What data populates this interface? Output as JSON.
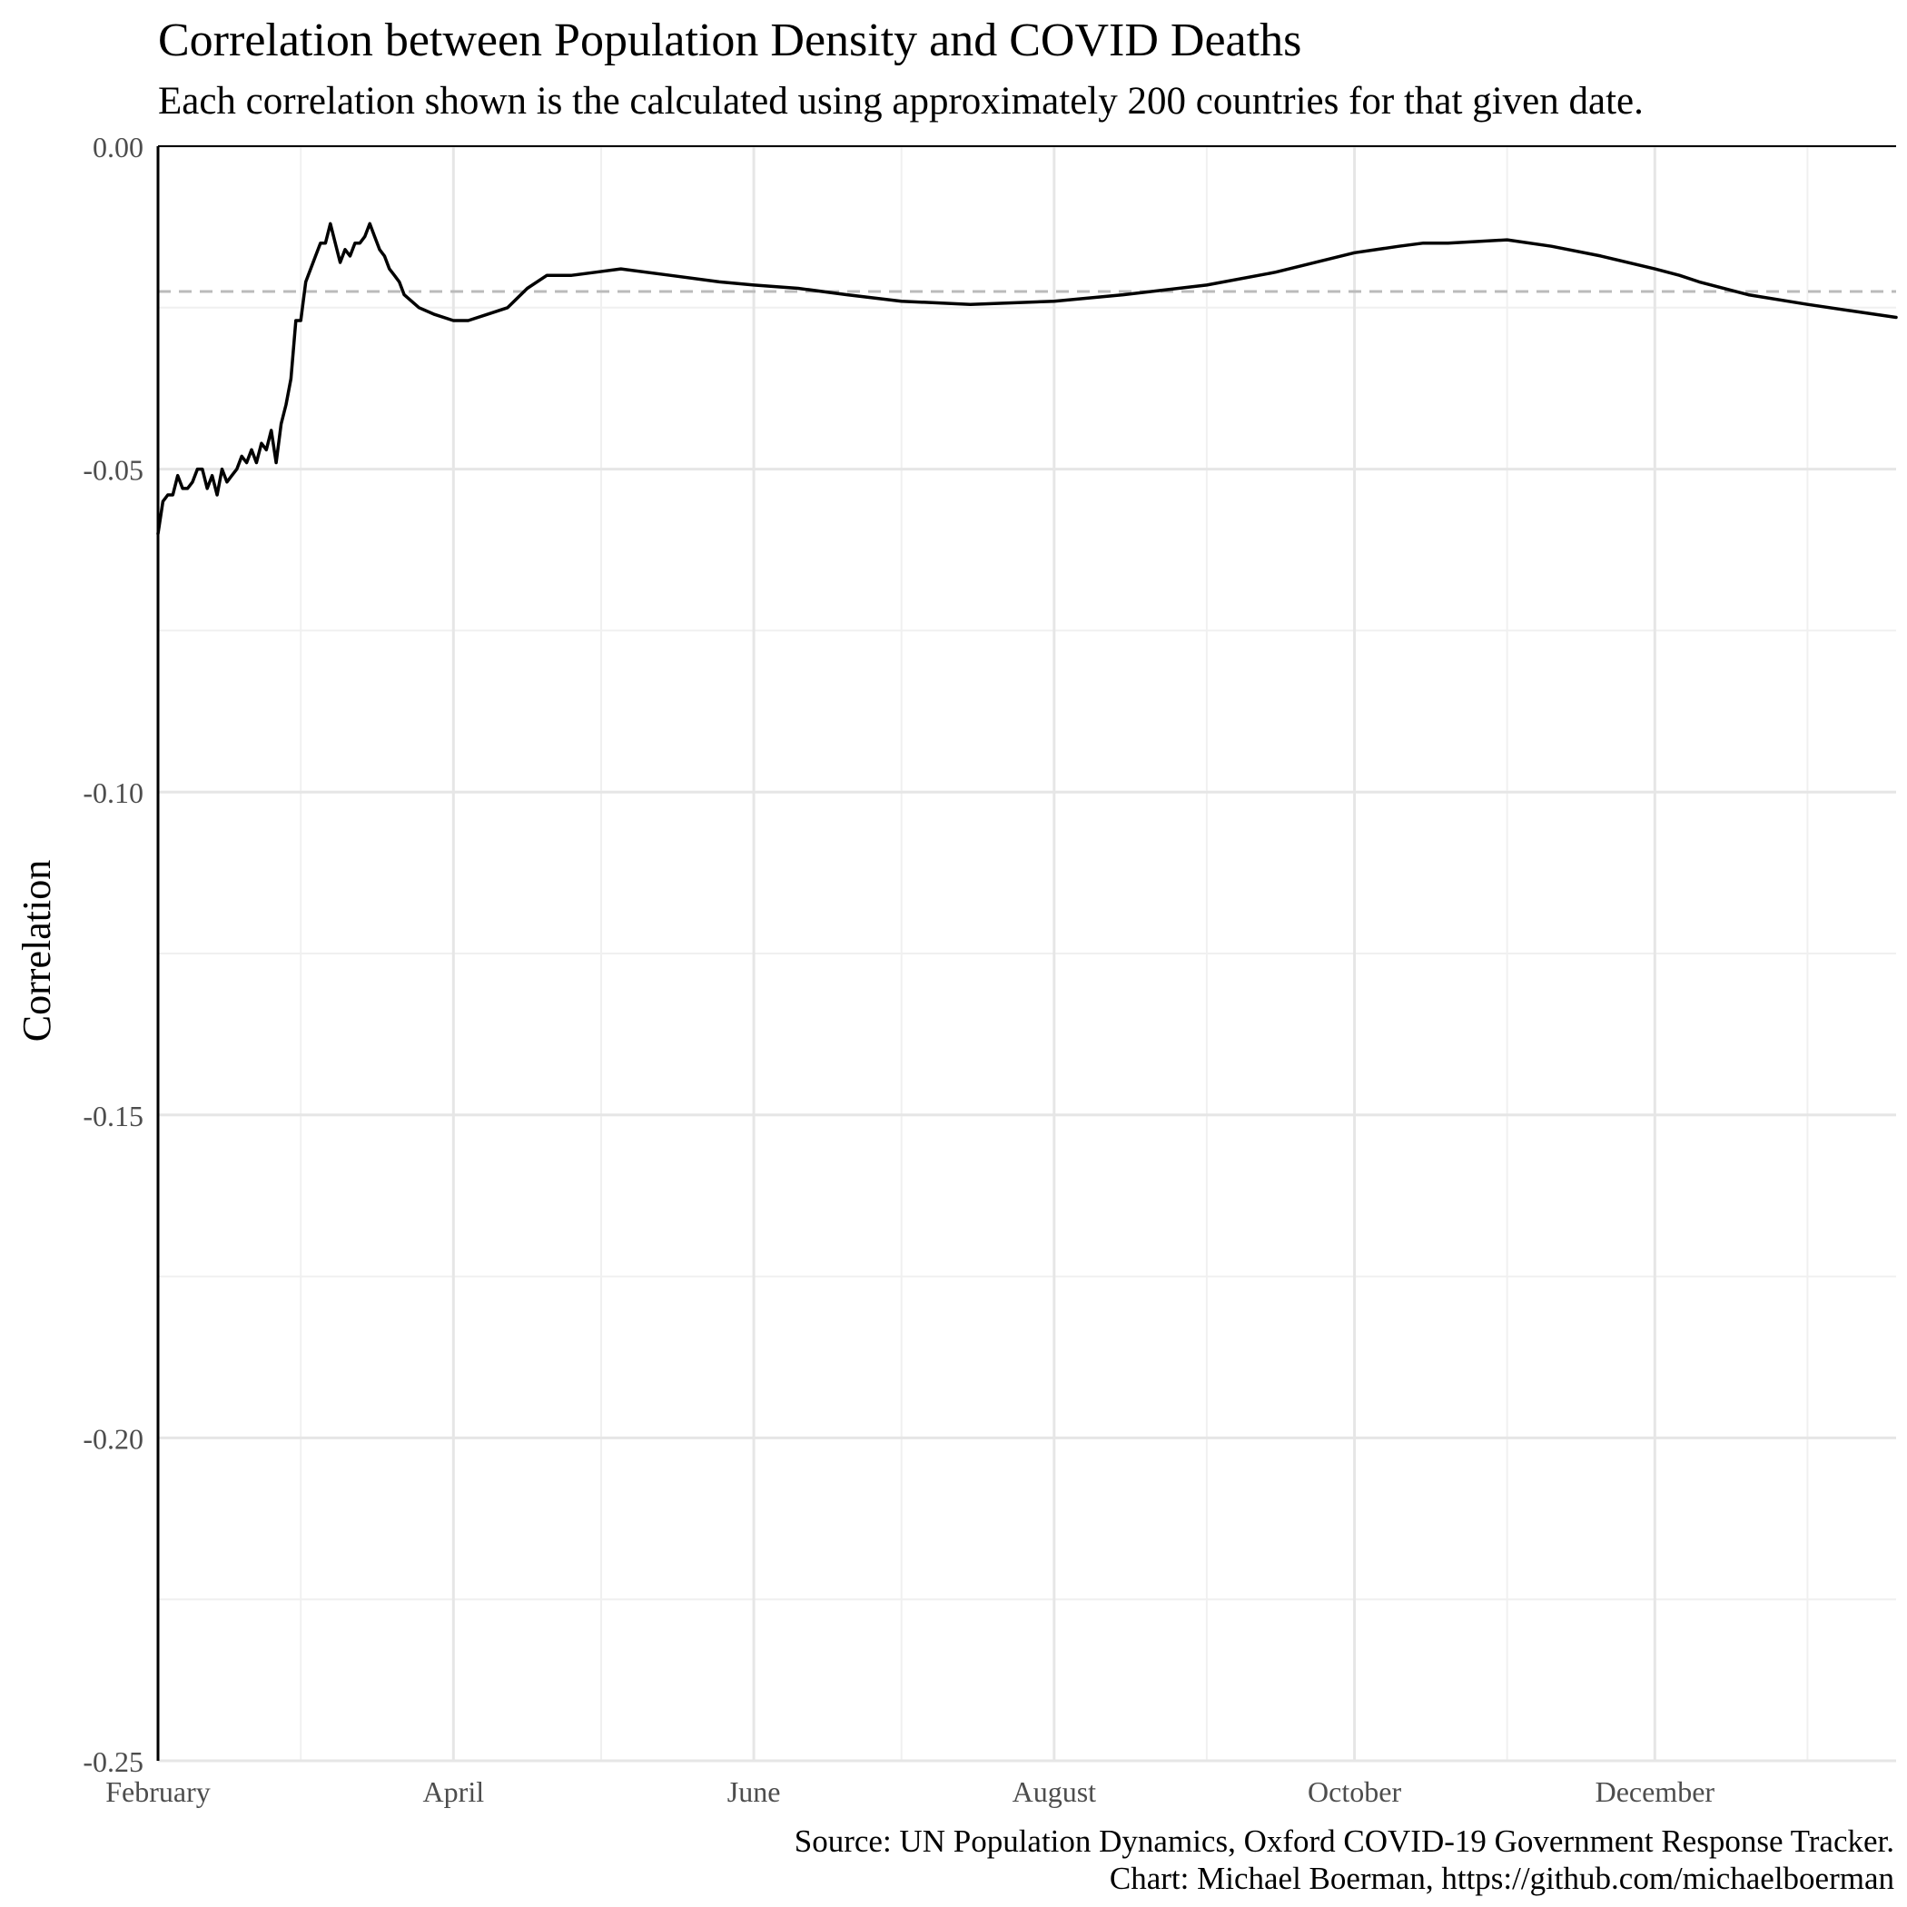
{
  "chart_data": {
    "type": "line",
    "title": "Correlation between Population Density and COVID Deaths",
    "subtitle": "Each correlation shown is the calculated using approximately 200 countries for that given date.",
    "ylabel": "Correlation",
    "xlabel": "",
    "ylim": [
      -0.25,
      0.0
    ],
    "yticks": [
      0.0,
      -0.05,
      -0.1,
      -0.15,
      -0.2,
      -0.25
    ],
    "ytick_labels": [
      "0.00",
      "-0.05",
      "-0.10",
      "-0.15",
      "-0.20",
      "-0.25"
    ],
    "xlim": [
      "2020-02-01",
      "2021-01-19"
    ],
    "xticks": [
      "2020-02-01",
      "2020-04-01",
      "2020-06-01",
      "2020-08-01",
      "2020-10-01",
      "2020-12-01"
    ],
    "xtick_labels": [
      "February",
      "April",
      "June",
      "August",
      "October",
      "December"
    ],
    "minor_x_gridlines": [
      "2020-03-01",
      "2020-05-01",
      "2020-07-01",
      "2020-09-01",
      "2020-11-01",
      "2021-01-01"
    ],
    "minor_y_gridlines": [
      -0.025,
      -0.075,
      -0.125,
      -0.175,
      -0.225
    ],
    "grid": true,
    "reference_line": {
      "y": -0.0225,
      "style": "dashed",
      "color": "#bbbbbb"
    },
    "line_color": "#000000",
    "series": [
      {
        "x": [
          "2020-02-01",
          "2020-02-02",
          "2020-02-03",
          "2020-02-04",
          "2020-02-05",
          "2020-02-06",
          "2020-02-07",
          "2020-02-08",
          "2020-02-09",
          "2020-02-10",
          "2020-02-11",
          "2020-02-12",
          "2020-02-13",
          "2020-02-14",
          "2020-02-15",
          "2020-02-16",
          "2020-02-17",
          "2020-02-18",
          "2020-02-19",
          "2020-02-20",
          "2020-02-21",
          "2020-02-22",
          "2020-02-23",
          "2020-02-24",
          "2020-02-25",
          "2020-02-26",
          "2020-02-27",
          "2020-02-28",
          "2020-02-29",
          "2020-03-01",
          "2020-03-02",
          "2020-03-03",
          "2020-03-04",
          "2020-03-05",
          "2020-03-06",
          "2020-03-07",
          "2020-03-08",
          "2020-03-09",
          "2020-03-10",
          "2020-03-11",
          "2020-03-12",
          "2020-03-13",
          "2020-03-14",
          "2020-03-15",
          "2020-03-16",
          "2020-03-17",
          "2020-03-18",
          "2020-03-19",
          "2020-03-20",
          "2020-03-21",
          "2020-03-22",
          "2020-03-25",
          "2020-03-28",
          "2020-04-01",
          "2020-04-04",
          "2020-04-08",
          "2020-04-12",
          "2020-04-16",
          "2020-04-20",
          "2020-04-25",
          "2020-04-30",
          "2020-05-05",
          "2020-05-15",
          "2020-05-25",
          "2020-06-01",
          "2020-06-10",
          "2020-06-20",
          "2020-07-01",
          "2020-07-15",
          "2020-08-01",
          "2020-08-15",
          "2020-09-01",
          "2020-09-15",
          "2020-10-01",
          "2020-10-10",
          "2020-10-15",
          "2020-10-20",
          "2020-11-01",
          "2020-11-10",
          "2020-11-20",
          "2020-12-01",
          "2020-12-06",
          "2020-12-10",
          "2020-12-20",
          "2021-01-01",
          "2021-01-10",
          "2021-01-19"
        ],
        "y": [
          -0.06,
          -0.055,
          -0.054,
          -0.054,
          -0.051,
          -0.053,
          -0.053,
          -0.052,
          -0.05,
          -0.05,
          -0.053,
          -0.051,
          -0.054,
          -0.05,
          -0.052,
          -0.051,
          -0.05,
          -0.048,
          -0.049,
          -0.047,
          -0.049,
          -0.046,
          -0.047,
          -0.044,
          -0.049,
          -0.043,
          -0.04,
          -0.036,
          -0.027,
          -0.027,
          -0.021,
          -0.019,
          -0.017,
          -0.015,
          -0.015,
          -0.012,
          -0.015,
          -0.018,
          -0.016,
          -0.017,
          -0.015,
          -0.015,
          -0.014,
          -0.012,
          -0.014,
          -0.016,
          -0.017,
          -0.019,
          -0.02,
          -0.021,
          -0.023,
          -0.025,
          -0.026,
          -0.027,
          -0.027,
          -0.026,
          -0.025,
          -0.022,
          -0.02,
          -0.02,
          -0.0195,
          -0.019,
          -0.02,
          -0.021,
          -0.0215,
          -0.022,
          -0.023,
          -0.024,
          -0.0245,
          -0.024,
          -0.023,
          -0.0215,
          -0.0195,
          -0.0165,
          -0.0155,
          -0.015,
          -0.015,
          -0.0145,
          -0.0155,
          -0.017,
          -0.019,
          -0.02,
          -0.021,
          -0.023,
          -0.0245,
          -0.0255,
          -0.0265
        ]
      }
    ]
  },
  "captions": {
    "source": "Source: UN Population Dynamics, Oxford COVID-19 Government Response Tracker.",
    "chart": "Chart: Michael Boerman, https://github.com/michaelboerman"
  }
}
